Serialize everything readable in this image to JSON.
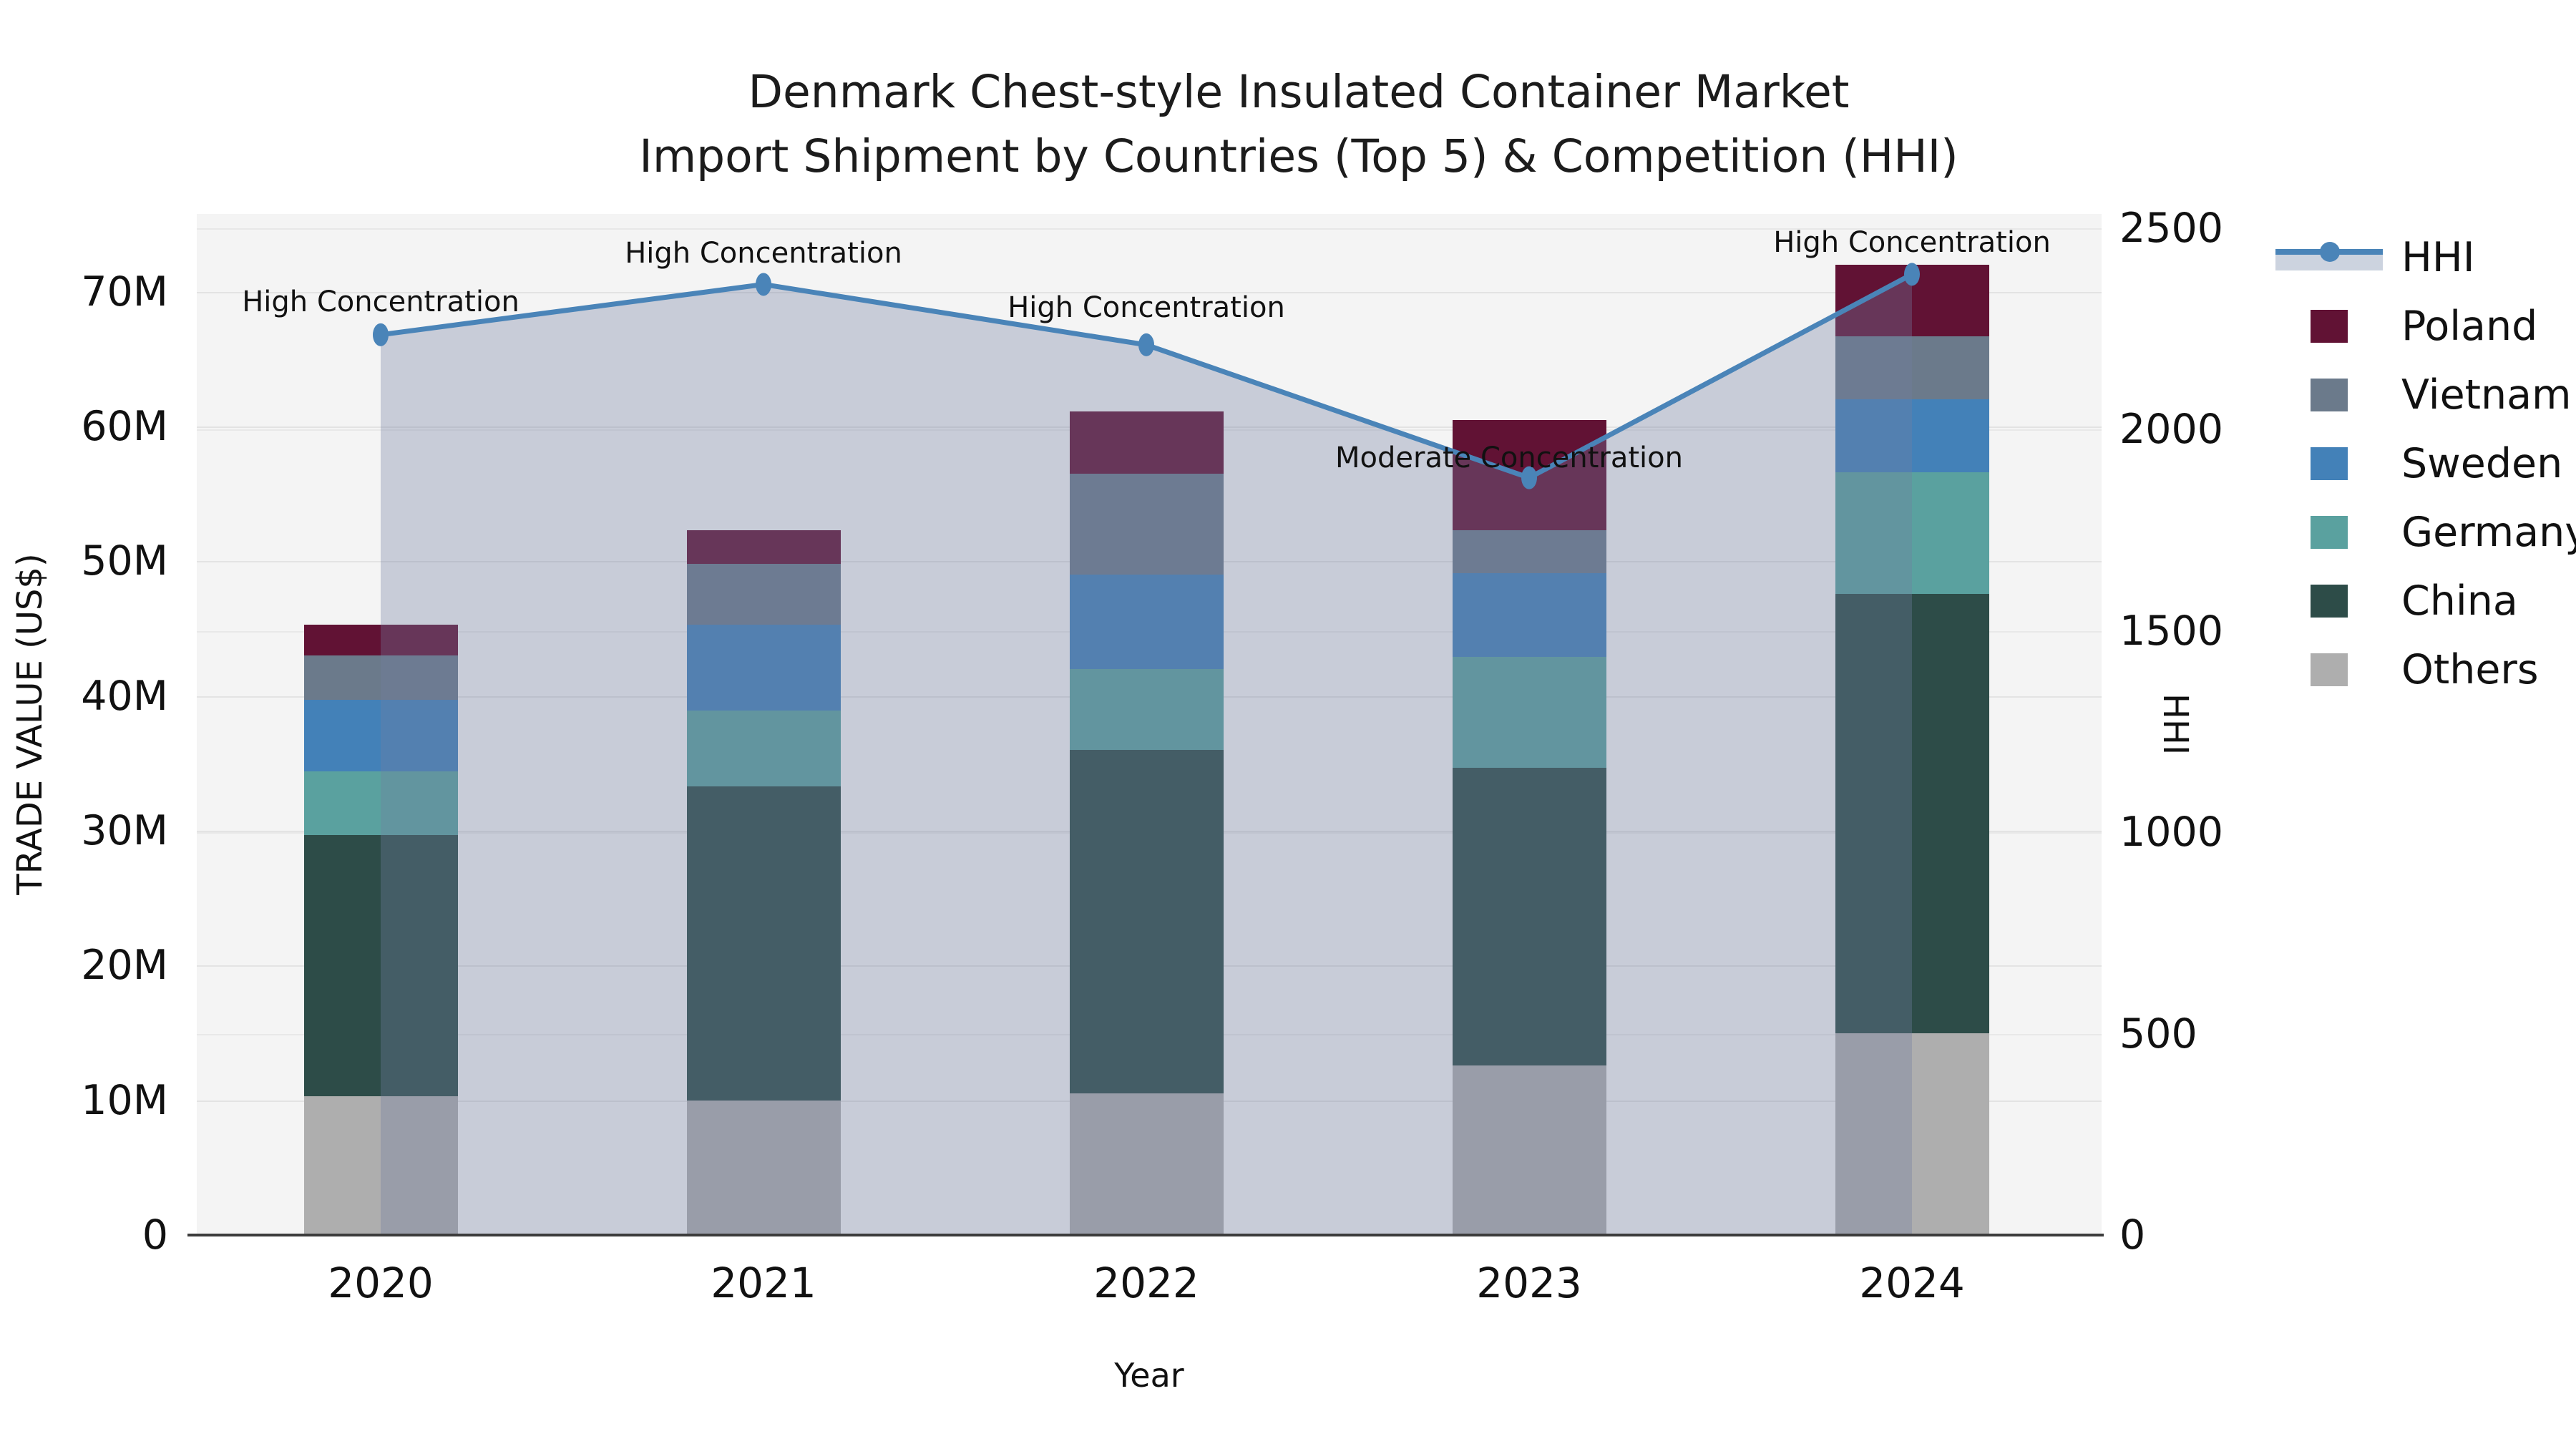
{
  "title": {
    "line1": "Denmark Chest-style Insulated Container Market",
    "line2": "Import Shipment by Countries (Top 5) & Competition (HHI)"
  },
  "axes": {
    "y_left": {
      "label": "TRADE VALUE (US$)",
      "tick_values": [
        0,
        10,
        20,
        30,
        40,
        50,
        60,
        70
      ],
      "tick_labels": [
        "0",
        "10M",
        "20M",
        "30M",
        "40M",
        "50M",
        "60M",
        "70M"
      ],
      "max": 75.78
    },
    "y_right": {
      "label": "HHI",
      "tick_values": [
        0,
        500,
        1000,
        1500,
        2000,
        2500
      ],
      "tick_labels": [
        "0",
        "500",
        "1000",
        "1500",
        "2000",
        "2500"
      ],
      "max": 2534.9
    },
    "x": {
      "label": "Year",
      "categories": [
        "2020",
        "2021",
        "2022",
        "2023",
        "2024"
      ]
    }
  },
  "legend": {
    "items": [
      "HHI",
      "Poland",
      "Vietnam",
      "Sweden",
      "Germany",
      "China",
      "Others"
    ]
  },
  "colors": {
    "series": {
      "Poland": "#611234",
      "Vietnam": "#6b7a8b",
      "Sweden": "#4381b8",
      "Germany": "#5aa19f",
      "China": "#2d4c48",
      "Others": "#aeaeae"
    },
    "hhi_line": "#4a84b8",
    "hhi_fill": "rgba(114,126,160,0.34)",
    "plot_bg": "#f4f4f4",
    "grid": "#e3e3e3",
    "axis_line": "#3c3c3c"
  },
  "chart_data": {
    "type": "bar",
    "subtype": "stacked-bars-with-line",
    "title": "Denmark Chest-style Insulated Container Market — Import Shipment by Countries (Top 5) & Competition (HHI)",
    "xlabel": "Year",
    "ylabel_left": "TRADE VALUE (US$)",
    "ylabel_right": "HHI",
    "categories": [
      "2020",
      "2021",
      "2022",
      "2023",
      "2024"
    ],
    "series": [
      {
        "name": "Others",
        "values": [
          10.3,
          10.0,
          10.5,
          12.6,
          15.0
        ]
      },
      {
        "name": "China",
        "values": [
          19.4,
          23.3,
          25.5,
          22.1,
          32.6
        ]
      },
      {
        "name": "Germany",
        "values": [
          4.7,
          5.6,
          6.0,
          8.2,
          9.0
        ]
      },
      {
        "name": "Sweden",
        "values": [
          5.3,
          6.4,
          7.0,
          6.2,
          5.4
        ]
      },
      {
        "name": "Vietnam",
        "values": [
          3.3,
          4.5,
          7.5,
          3.2,
          4.7
        ]
      },
      {
        "name": "Poland",
        "values": [
          2.3,
          2.5,
          4.6,
          8.2,
          5.3
        ]
      }
    ],
    "bar_totals_musd": [
      45.3,
      52.3,
      61.1,
      60.5,
      72.0
    ],
    "line_series": {
      "name": "HHI",
      "values": [
        2235,
        2360,
        2210,
        1880,
        2385
      ]
    },
    "annotations": [
      "High Concentration",
      "High Concentration",
      "High Concentration",
      "Moderate Concentration",
      "High Concentration"
    ],
    "ylim_left_musd": [
      0,
      75.78
    ],
    "ylim_right_hhi": [
      0,
      2534.9
    ],
    "grid": true,
    "legend_position": "right"
  }
}
